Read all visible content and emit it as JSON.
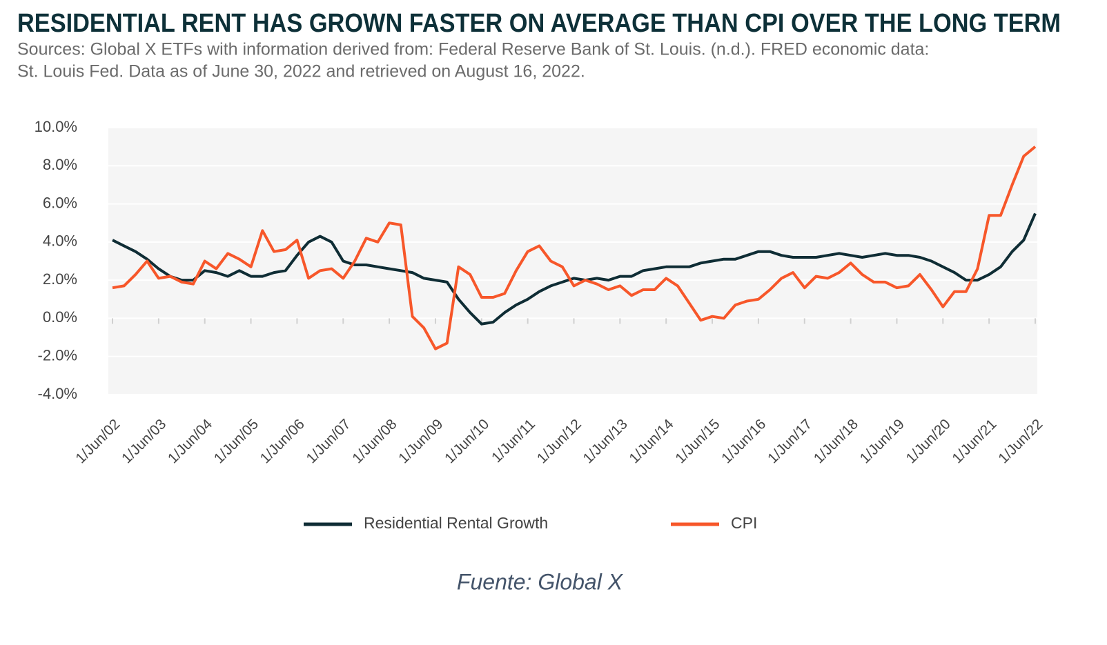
{
  "chart_data": {
    "type": "line",
    "title": "RESIDENTIAL RENT HAS GROWN FASTER ON AVERAGE THAN CPI OVER THE LONG TERM",
    "subtitle": [
      "Sources: Global X ETFs with information derived from: Federal Reserve Bank of St. Louis. (n.d.). FRED economic data:",
      "St. Louis Fed. Data as of June 30, 2022 and retrieved on August 16, 2022."
    ],
    "caption": "Fuente: Global X",
    "categories": [
      "1/Jun/02",
      null,
      null,
      null,
      "1/Jun/03",
      null,
      null,
      null,
      "1/Jun/04",
      null,
      null,
      null,
      "1/Jun/05",
      null,
      null,
      null,
      "1/Jun/06",
      null,
      null,
      null,
      "1/Jun/07",
      null,
      null,
      null,
      "1/Jun/08",
      null,
      null,
      null,
      "1/Jun/09",
      null,
      null,
      null,
      "1/Jun/10",
      null,
      null,
      null,
      "1/Jun/11",
      null,
      null,
      null,
      "1/Jun/12",
      null,
      null,
      null,
      "1/Jun/13",
      null,
      null,
      null,
      "1/Jun/14",
      null,
      null,
      null,
      "1/Jun/15",
      null,
      null,
      null,
      "1/Jun/16",
      null,
      null,
      null,
      "1/Jun/17",
      null,
      null,
      null,
      "1/Jun/18",
      null,
      null,
      null,
      "1/Jun/19",
      null,
      null,
      null,
      "1/Jun/20",
      null,
      null,
      null,
      "1/Jun/21",
      null,
      null,
      null,
      "1/Jun/22"
    ],
    "series": [
      {
        "name": "Residential Rental Growth",
        "color": "#0f2d35",
        "values": [
          4.1,
          3.8,
          3.5,
          3.1,
          2.6,
          2.2,
          2.0,
          2.0,
          2.5,
          2.4,
          2.2,
          2.5,
          2.2,
          2.2,
          2.4,
          2.5,
          3.3,
          4.0,
          4.3,
          4.0,
          3.0,
          2.8,
          2.8,
          2.7,
          2.6,
          2.5,
          2.4,
          2.1,
          2.0,
          1.9,
          1.0,
          0.3,
          -0.3,
          -0.2,
          0.3,
          0.7,
          1.0,
          1.4,
          1.7,
          1.9,
          2.1,
          2.0,
          2.1,
          2.0,
          2.2,
          2.2,
          2.5,
          2.6,
          2.7,
          2.7,
          2.7,
          2.9,
          3.0,
          3.1,
          3.1,
          3.3,
          3.5,
          3.5,
          3.3,
          3.2,
          3.2,
          3.2,
          3.3,
          3.4,
          3.3,
          3.2,
          3.3,
          3.4,
          3.3,
          3.3,
          3.2,
          3.0,
          2.7,
          2.4,
          2.0,
          2.0,
          2.3,
          2.7,
          3.5,
          4.1,
          5.5
        ]
      },
      {
        "name": "CPI",
        "color": "#f7572a",
        "values": [
          1.6,
          1.7,
          2.3,
          3.0,
          2.1,
          2.2,
          1.9,
          1.8,
          3.0,
          2.6,
          3.4,
          3.1,
          2.7,
          4.6,
          3.5,
          3.6,
          4.1,
          2.1,
          2.5,
          2.6,
          2.1,
          3.0,
          4.2,
          4.0,
          5.0,
          4.9,
          0.1,
          -0.5,
          -1.6,
          -1.3,
          2.7,
          2.3,
          1.1,
          1.1,
          1.3,
          2.5,
          3.5,
          3.8,
          3.0,
          2.7,
          1.7,
          2.0,
          1.8,
          1.5,
          1.7,
          1.2,
          1.5,
          1.5,
          2.1,
          1.7,
          0.8,
          -0.1,
          0.1,
          0.0,
          0.7,
          0.9,
          1.0,
          1.5,
          2.1,
          2.4,
          1.6,
          2.2,
          2.1,
          2.4,
          2.9,
          2.3,
          1.9,
          1.9,
          1.6,
          1.7,
          2.3,
          1.5,
          0.6,
          1.4,
          1.4,
          2.6,
          5.4,
          5.4,
          7.0,
          8.5,
          9.0
        ]
      }
    ],
    "ylim": [
      -4,
      10
    ],
    "yticks": [
      {
        "value": -4,
        "label": "-4.0%"
      },
      {
        "value": -2,
        "label": "-2.0%"
      },
      {
        "value": 0,
        "label": "0.0%"
      },
      {
        "value": 2,
        "label": "2.0%"
      },
      {
        "value": 4,
        "label": "4.0%"
      },
      {
        "value": 6,
        "label": "6.0%"
      },
      {
        "value": 8,
        "label": "8.0%"
      },
      {
        "value": 10,
        "label": "10.0%"
      }
    ],
    "grid": true,
    "legend": "bottom"
  }
}
